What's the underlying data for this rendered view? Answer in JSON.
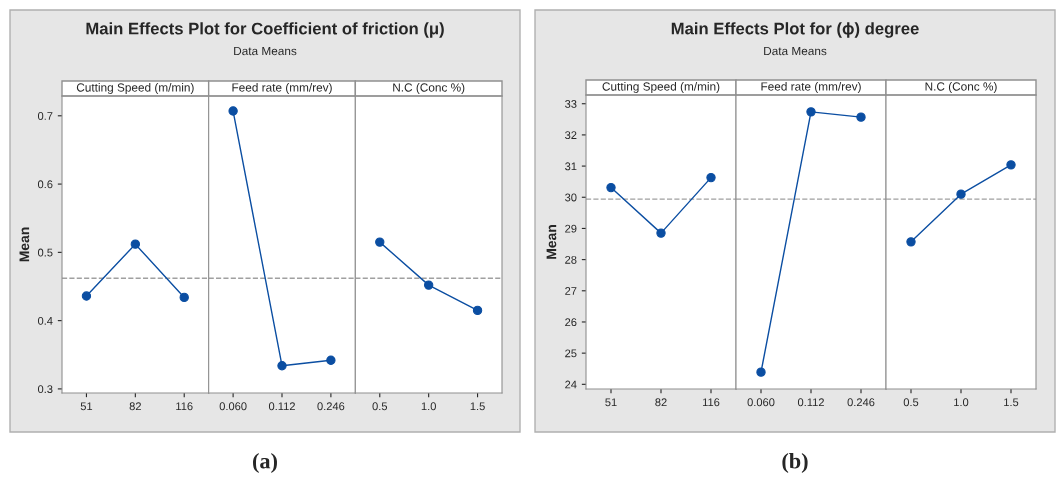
{
  "chart_data": [
    {
      "type": "line",
      "title": "Cutting Speed (m/min)",
      "ylabel": "Mean",
      "annotations": [
        "Main Effects Plot for Coefficient of friction (μ)",
        "Data Means",
        "(a)"
      ],
      "categories": [
        "51",
        "82",
        "116"
      ],
      "values": [
        0.436,
        0.512,
        0.434
      ],
      "color": "#0b4ea2",
      "marker": "circle",
      "ylim": [
        0.294,
        0.729
      ],
      "yticks": [
        0.3,
        0.4,
        0.5,
        0.6,
        0.7
      ],
      "ref_lines": [
        {
          "axis": "y",
          "value": 0.462,
          "color": "#a0a0a0",
          "line_style": "dashed"
        }
      ],
      "grid": false
    },
    {
      "type": "line",
      "title": "Feed rate (mm/rev)",
      "categories": [
        "0.060",
        "0.112",
        "0.246"
      ],
      "values": [
        0.707,
        0.334,
        0.342
      ],
      "color": "#0b4ea2",
      "marker": "circle",
      "ylim": [
        0.294,
        0.729
      ],
      "tick_labels": "x",
      "ref_lines": [
        {
          "axis": "y",
          "value": 0.462,
          "color": "#a0a0a0",
          "line_style": "dashed"
        }
      ],
      "grid": false
    },
    {
      "type": "line",
      "title": "N.C (Conc %)",
      "categories": [
        "0.5",
        "1.0",
        "1.5"
      ],
      "values": [
        0.515,
        0.452,
        0.415
      ],
      "color": "#0b4ea2",
      "marker": "circle",
      "ylim": [
        0.294,
        0.729
      ],
      "tick_labels": "x",
      "ref_lines": [
        {
          "axis": "y",
          "value": 0.462,
          "color": "#a0a0a0",
          "line_style": "dashed"
        }
      ],
      "grid": false
    },
    {
      "type": "line",
      "title": "Cutting Speed (m/min)",
      "ylabel": "Mean",
      "annotations": [
        "Main Effects Plot for (ϕ) degree",
        "Data Means",
        "(b)"
      ],
      "categories": [
        "51",
        "82",
        "116"
      ],
      "values": [
        30.31,
        28.85,
        30.63
      ],
      "color": "#0b4ea2",
      "marker": "circle",
      "ylim": [
        23.85,
        33.28
      ],
      "yticks": [
        24,
        25,
        26,
        27,
        28,
        29,
        30,
        31,
        32,
        33
      ],
      "ref_lines": [
        {
          "axis": "y",
          "value": 29.94,
          "color": "#a0a0a0",
          "line_style": "dashed"
        }
      ],
      "grid": false
    },
    {
      "type": "line",
      "title": "Feed rate (mm/rev)",
      "categories": [
        "0.060",
        "0.112",
        "0.246"
      ],
      "values": [
        24.39,
        32.74,
        32.57
      ],
      "color": "#0b4ea2",
      "marker": "circle",
      "ylim": [
        23.85,
        33.28
      ],
      "tick_labels": "x",
      "ref_lines": [
        {
          "axis": "y",
          "value": 29.94,
          "color": "#a0a0a0",
          "line_style": "dashed"
        }
      ],
      "grid": false
    },
    {
      "type": "line",
      "title": "N.C (Conc %)",
      "categories": [
        "0.5",
        "1.0",
        "1.5"
      ],
      "values": [
        28.57,
        30.1,
        31.04
      ],
      "color": "#0b4ea2",
      "marker": "circle",
      "ylim": [
        23.85,
        33.28
      ],
      "tick_labels": "x",
      "ref_lines": [
        {
          "axis": "y",
          "value": 29.94,
          "color": "#a0a0a0",
          "line_style": "dashed"
        }
      ],
      "grid": false
    }
  ]
}
